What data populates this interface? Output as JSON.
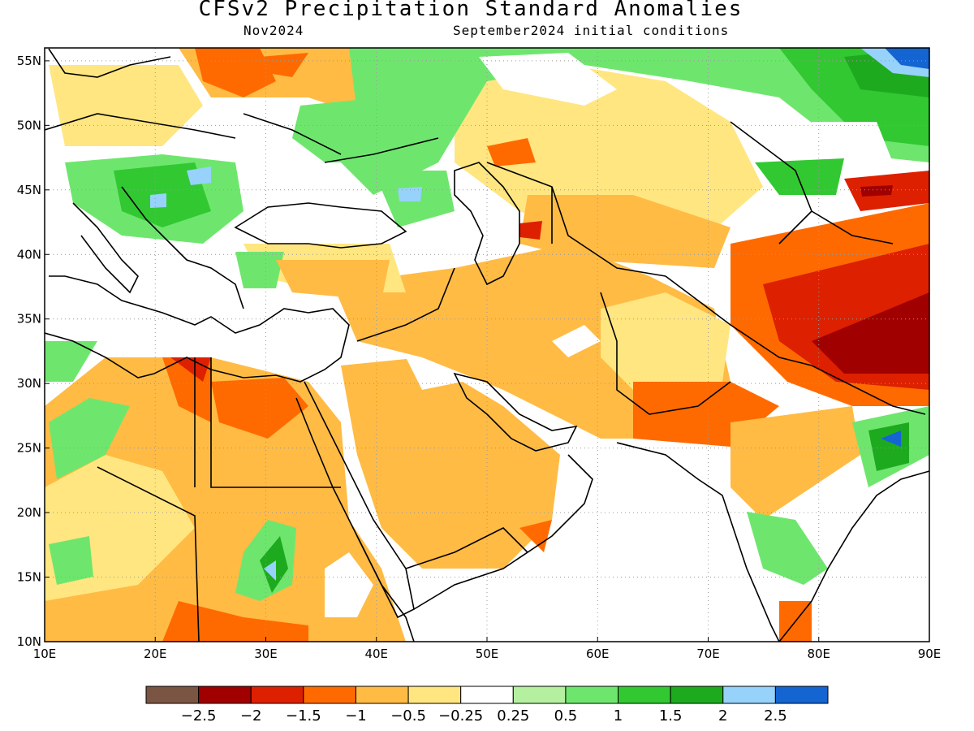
{
  "title": "CFSv2 Precipitation Standard Anomalies",
  "subtitle_left": "Nov2024",
  "subtitle_right": "September2024 initial conditions",
  "map": {
    "lon_range": [
      10,
      90
    ],
    "lat_range": [
      10,
      56
    ],
    "lon_ticks": [
      "10E",
      "20E",
      "30E",
      "40E",
      "50E",
      "60E",
      "70E",
      "80E",
      "90E"
    ],
    "lat_ticks": [
      "10N",
      "15N",
      "20N",
      "25N",
      "30N",
      "35N",
      "40N",
      "45N",
      "50N",
      "55N"
    ],
    "grid_lines": true
  },
  "colorbar": {
    "colors": [
      "#7a5543",
      "#a00000",
      "#dd2000",
      "#ff6a00",
      "#ffbb44",
      "#ffe680",
      "#ffffff",
      "#b4f0a0",
      "#6ee66e",
      "#32c832",
      "#1eaa1e",
      "#96d2fa",
      "#1464d2"
    ],
    "labels": [
      "−2.5",
      "−2",
      "−1.5",
      "−1",
      "−0.5",
      "−0.25",
      "0.25",
      "0.5",
      "1",
      "1.5",
      "2",
      "2.5"
    ]
  },
  "palette": {
    "dry1": "#ffbb44",
    "dry2": "#ffe680",
    "dry3": "#ff6a00",
    "dry4": "#dd2000",
    "dry5": "#a00000",
    "wet1": "#b4f0a0",
    "wet2": "#6ee66e",
    "wet3": "#32c832",
    "wet4": "#1eaa1e",
    "wet5": "#96d2fa",
    "wet6": "#1464d2",
    "land_outline": "#000000"
  }
}
